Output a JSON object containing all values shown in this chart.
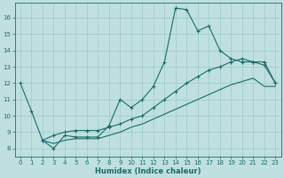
{
  "xlabel": "Humidex (Indice chaleur)",
  "background_color": "#c0e0e0",
  "grid_color": "#a0cccc",
  "line_color": "#1a6b6b",
  "xlim": [
    -0.5,
    23.5
  ],
  "ylim": [
    7.5,
    16.9
  ],
  "yticks": [
    8,
    9,
    10,
    11,
    12,
    13,
    14,
    15,
    16
  ],
  "xticks": [
    0,
    1,
    2,
    3,
    4,
    5,
    6,
    7,
    8,
    9,
    10,
    11,
    12,
    13,
    14,
    15,
    16,
    17,
    18,
    19,
    20,
    21,
    22,
    23
  ],
  "curve_main": {
    "x": [
      0,
      1,
      2,
      3,
      4,
      5,
      6,
      7,
      8,
      9,
      10,
      11,
      12,
      13,
      14,
      15,
      16,
      17,
      18,
      19,
      20,
      21,
      22,
      23
    ],
    "y": [
      12.0,
      10.3,
      8.5,
      8.0,
      8.8,
      8.7,
      8.7,
      8.7,
      9.4,
      11.0,
      10.5,
      11.0,
      11.8,
      13.3,
      16.6,
      16.5,
      15.2,
      15.5,
      14.0,
      13.5,
      13.3,
      13.3,
      13.1,
      12.0
    ]
  },
  "curve_upper_linear": {
    "x": [
      2,
      3,
      4,
      5,
      6,
      7,
      8,
      9,
      10,
      11,
      12,
      13,
      14,
      15,
      16,
      17,
      18,
      19,
      20,
      21,
      22,
      23
    ],
    "y": [
      8.5,
      8.8,
      9.0,
      9.1,
      9.1,
      9.1,
      9.3,
      9.5,
      9.8,
      10.0,
      10.5,
      11.0,
      11.5,
      12.0,
      12.4,
      12.8,
      13.0,
      13.3,
      13.5,
      13.3,
      13.3,
      12.0
    ]
  },
  "curve_lower_linear": {
    "x": [
      2,
      3,
      4,
      5,
      6,
      7,
      8,
      9,
      10,
      11,
      12,
      13,
      14,
      15,
      16,
      17,
      18,
      19,
      20,
      21,
      22,
      23
    ],
    "y": [
      8.5,
      8.3,
      8.5,
      8.6,
      8.6,
      8.6,
      8.8,
      9.0,
      9.3,
      9.5,
      9.8,
      10.1,
      10.4,
      10.7,
      11.0,
      11.3,
      11.6,
      11.9,
      12.1,
      12.3,
      11.8,
      11.8
    ]
  }
}
